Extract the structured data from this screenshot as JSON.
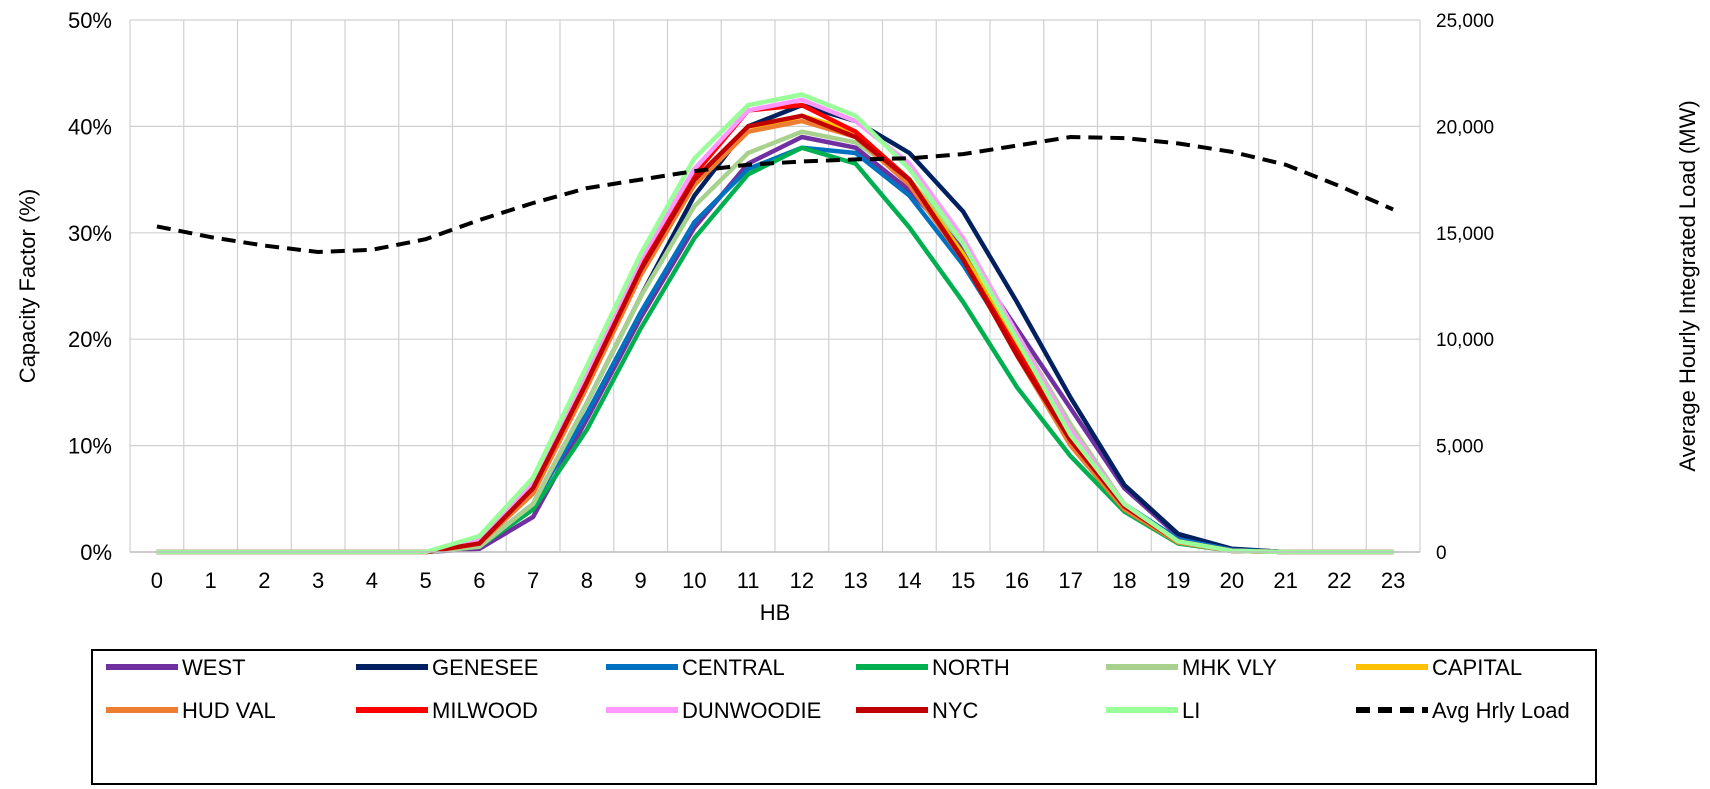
{
  "chart_data": {
    "type": "line",
    "title": "",
    "xlabel": "HB",
    "ylabel": "Capacity  Factor (%)",
    "y2label": "Average Hourly Integrated Load (MW)",
    "x": [
      0,
      1,
      2,
      3,
      4,
      5,
      6,
      7,
      8,
      9,
      10,
      11,
      12,
      13,
      14,
      15,
      16,
      17,
      18,
      19,
      20,
      21,
      22,
      23
    ],
    "x_tick_labels": [
      "0",
      "1",
      "2",
      "3",
      "4",
      "5",
      "6",
      "7",
      "8",
      "9",
      "10",
      "11",
      "12",
      "13",
      "14",
      "15",
      "16",
      "17",
      "18",
      "19",
      "20",
      "21",
      "22",
      "23"
    ],
    "ylim": [
      0,
      50
    ],
    "y_tick_labels": [
      "0%",
      "10%",
      "20%",
      "30%",
      "40%",
      "50%"
    ],
    "y2lim": [
      0,
      25000
    ],
    "y2_tick_labels": [
      "0",
      "5,000",
      "10,000",
      "15,000",
      "20,000",
      "25,000"
    ],
    "grid": true,
    "legend_position": "bottom",
    "series": [
      {
        "name": "WEST",
        "color": "#7030a0",
        "axis": "left",
        "values": [
          0,
          0,
          0,
          0,
          0,
          0,
          0.3,
          3.3,
          12.5,
          22,
          30.5,
          36.5,
          39,
          38,
          34,
          28.5,
          21,
          13.5,
          6,
          1.5,
          0.2,
          0,
          0,
          0
        ]
      },
      {
        "name": "GENESEE",
        "color": "#002060",
        "axis": "left",
        "values": [
          0,
          0,
          0,
          0,
          0,
          0,
          0.5,
          4.5,
          14,
          24,
          33.5,
          40,
          42,
          40.5,
          37.5,
          32,
          23.5,
          14.5,
          6.3,
          1.7,
          0.3,
          0,
          0,
          0
        ]
      },
      {
        "name": "CENTRAL",
        "color": "#0070c0",
        "axis": "left",
        "values": [
          0,
          0,
          0,
          0,
          0,
          0,
          0.5,
          4.5,
          13,
          22.5,
          31,
          36,
          38,
          37.5,
          33.5,
          27,
          19,
          11,
          4.5,
          1.2,
          0.2,
          0,
          0,
          0
        ]
      },
      {
        "name": "NORTH",
        "color": "#00b050",
        "axis": "left",
        "values": [
          0,
          0,
          0,
          0,
          0,
          0,
          0.5,
          4,
          11.5,
          21,
          29.5,
          35.5,
          38,
          36.5,
          30.5,
          23.5,
          15.5,
          9,
          3.8,
          0.8,
          0.1,
          0,
          0,
          0
        ]
      },
      {
        "name": "MHK VLY",
        "color": "#a9d18e",
        "axis": "left",
        "values": [
          0,
          0,
          0,
          0,
          0,
          0,
          0.5,
          4.5,
          14,
          24,
          32.5,
          37.5,
          39.5,
          38.5,
          35,
          29,
          20.5,
          12,
          4.5,
          1,
          0.1,
          0,
          0,
          0
        ]
      },
      {
        "name": "CAPITAL",
        "color": "#ffc000",
        "axis": "left",
        "values": [
          0,
          0,
          0,
          0,
          0,
          0,
          0.8,
          5.5,
          15.5,
          26,
          34.5,
          39.5,
          41,
          39.5,
          35,
          28,
          19.5,
          10.5,
          4.2,
          0.9,
          0.1,
          0,
          0,
          0
        ]
      },
      {
        "name": "HUD VAL",
        "color": "#ed7d31",
        "axis": "left",
        "values": [
          0,
          0,
          0,
          0,
          0,
          0,
          0.8,
          5.5,
          15.5,
          26,
          34.5,
          39.5,
          40.5,
          39,
          34.5,
          27.5,
          18.5,
          10,
          4,
          0.9,
          0.1,
          0,
          0,
          0
        ]
      },
      {
        "name": "MILWOOD",
        "color": "#ff0000",
        "axis": "left",
        "values": [
          0,
          0,
          0,
          0,
          0,
          0,
          1,
          6,
          16,
          27,
          35.5,
          41.5,
          42,
          39.5,
          35,
          27.5,
          19,
          10.5,
          4.3,
          1,
          0.1,
          0,
          0,
          0
        ]
      },
      {
        "name": "DUNWOODIE",
        "color": "#ff99ff",
        "axis": "left",
        "values": [
          0,
          0,
          0,
          0,
          0,
          0,
          1.2,
          6.5,
          17,
          27.5,
          36,
          41.5,
          42.5,
          40.5,
          36.5,
          29.5,
          20.5,
          11.5,
          4.5,
          1,
          0.1,
          0,
          0,
          0
        ]
      },
      {
        "name": "NYC",
        "color": "#c00000",
        "axis": "left",
        "values": [
          0,
          0,
          0,
          0,
          0,
          0,
          0.8,
          6,
          16,
          26.5,
          35,
          40,
          41,
          39,
          35,
          27.5,
          18.5,
          10.5,
          4.3,
          1,
          0.1,
          0,
          0,
          0
        ]
      },
      {
        "name": "LI",
        "color": "#99ff99",
        "axis": "left",
        "values": [
          0,
          0,
          0,
          0,
          0,
          0,
          1.5,
          7,
          17.5,
          28,
          37,
          42,
          43,
          41,
          36,
          29,
          20,
          11,
          4.5,
          1,
          0.1,
          0,
          0,
          0
        ]
      },
      {
        "name": "Avg Hrly Load",
        "color": "#000000",
        "axis": "right",
        "dashed": true,
        "values": [
          15300,
          14800,
          14400,
          14100,
          14200,
          14700,
          15600,
          16400,
          17100,
          17500,
          17900,
          18200,
          18350,
          18450,
          18500,
          18700,
          19100,
          19500,
          19450,
          19200,
          18800,
          18200,
          17200,
          16100
        ]
      }
    ]
  }
}
